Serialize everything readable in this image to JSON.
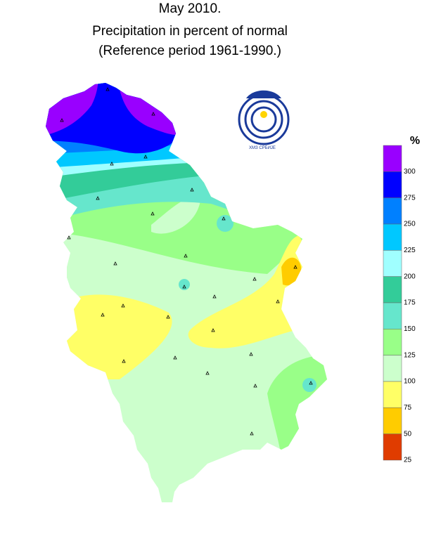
{
  "header": {
    "title": "May 2010.",
    "subtitle": "Precipitation in percent of normal",
    "reference": "(Reference period 1961-1990.)"
  },
  "logo": {
    "text": "ХМЗ СРБИЈЕ"
  },
  "legend": {
    "unit": "%",
    "colors": [
      "#9900ff",
      "#0000ff",
      "#0080ff",
      "#00c8ff",
      "#a0ffff",
      "#33cc99",
      "#66e6cc",
      "#99ff88",
      "#ccffcc",
      "#ffff66",
      "#ffcc00",
      "#e03c00"
    ],
    "ticks": [
      300,
      275,
      250,
      225,
      200,
      175,
      150,
      125,
      100,
      75,
      50,
      25
    ]
  }
}
